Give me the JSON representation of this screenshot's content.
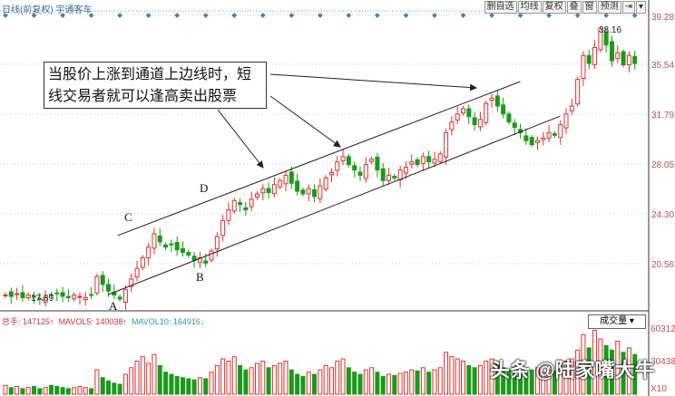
{
  "header": {
    "title": "日线(前复权) 宇通客车",
    "toolbar": [
      "删自选",
      "均线",
      "复权",
      "叠",
      "窗",
      "预测",
      "⇥",
      "▾"
    ]
  },
  "annotation": {
    "text": "当股价上涨到通道上边线时，短线交易者就可以逢高卖出股票",
    "points": {
      "A": "A",
      "B": "B",
      "C": "C",
      "D": "D"
    }
  },
  "volume_info": {
    "total": "总手: 147125↑",
    "mavol5": "MAVOL5: 140038↑",
    "mavol10": "MAVOL10: 164916↓",
    "selector": "成交量 ▾"
  },
  "watermark": "头条 @陆家嘴大牛",
  "colors": {
    "up": "#e03030",
    "down": "#1a9a1a",
    "line": "#222",
    "axis": "#c05050"
  },
  "chart_data": {
    "type": "candlestick",
    "y_ticks": [
      39.28,
      35.54,
      31.79,
      28.05,
      24.3,
      20.56
    ],
    "volume_ticks": [
      "60312",
      "30438",
      "X10"
    ],
    "labels": {
      "high": "38.16",
      "low": "17.89"
    },
    "closes": [
      18.2,
      18.1,
      18.3,
      18.0,
      18.2,
      18.1,
      17.9,
      18.0,
      18.2,
      18.3,
      18.1,
      18.0,
      18.2,
      18.1,
      18.0,
      18.2,
      19.6,
      19.0,
      18.5,
      18.2,
      17.9,
      18.6,
      19.4,
      20.2,
      21.0,
      21.8,
      22.8,
      22.2,
      21.8,
      22.0,
      21.6,
      21.4,
      21.2,
      20.8,
      21.0,
      20.6,
      21.5,
      22.6,
      23.8,
      24.6,
      25.3,
      25.0,
      24.6,
      25.4,
      25.8,
      26.2,
      25.9,
      26.5,
      26.8,
      27.2,
      26.6,
      26.0,
      25.8,
      26.2,
      25.6,
      26.4,
      27.0,
      27.4,
      28.2,
      28.6,
      28.0,
      27.6,
      27.2,
      28.0,
      28.4,
      27.6,
      26.8,
      27.2,
      27.0,
      27.6,
      27.8,
      28.2,
      28.0,
      28.6,
      28.2,
      28.4,
      28.8,
      30.4,
      31.2,
      31.8,
      32.2,
      31.6,
      31.0,
      31.4,
      32.6,
      33.0,
      32.4,
      31.8,
      31.2,
      30.8,
      30.4,
      29.8,
      29.5,
      29.8,
      30.0,
      30.4,
      30.2,
      31.0,
      31.8,
      32.4,
      34.4,
      36.2,
      35.6,
      36.8,
      38.2,
      37.0,
      35.8,
      36.4,
      35.5,
      36.2,
      35.6
    ],
    "volumes": [
      8,
      6,
      7,
      5,
      6,
      7,
      5,
      6,
      8,
      7,
      6,
      5,
      6,
      7,
      6,
      5,
      22,
      15,
      12,
      10,
      9,
      18,
      24,
      30,
      34,
      28,
      36,
      26,
      20,
      18,
      16,
      15,
      14,
      13,
      15,
      14,
      20,
      26,
      32,
      30,
      34,
      26,
      22,
      24,
      28,
      30,
      24,
      26,
      28,
      30,
      22,
      18,
      16,
      20,
      18,
      22,
      26,
      24,
      30,
      32,
      24,
      20,
      18,
      22,
      24,
      20,
      16,
      18,
      17,
      19,
      20,
      22,
      21,
      24,
      20,
      22,
      24,
      38,
      34,
      32,
      30,
      26,
      24,
      26,
      30,
      32,
      28,
      24,
      22,
      20,
      18,
      20,
      22,
      24,
      20,
      22,
      21,
      26,
      30,
      32,
      40,
      54,
      42,
      58,
      50,
      44,
      40,
      48,
      38,
      42,
      36
    ],
    "channel": {
      "upper": [
        [
          19.6,
          22.67
        ],
        [
          90,
          34.24
        ]
      ],
      "lower": [
        [
          18,
          18.24
        ],
        [
          97,
          31.65
        ]
      ]
    }
  }
}
